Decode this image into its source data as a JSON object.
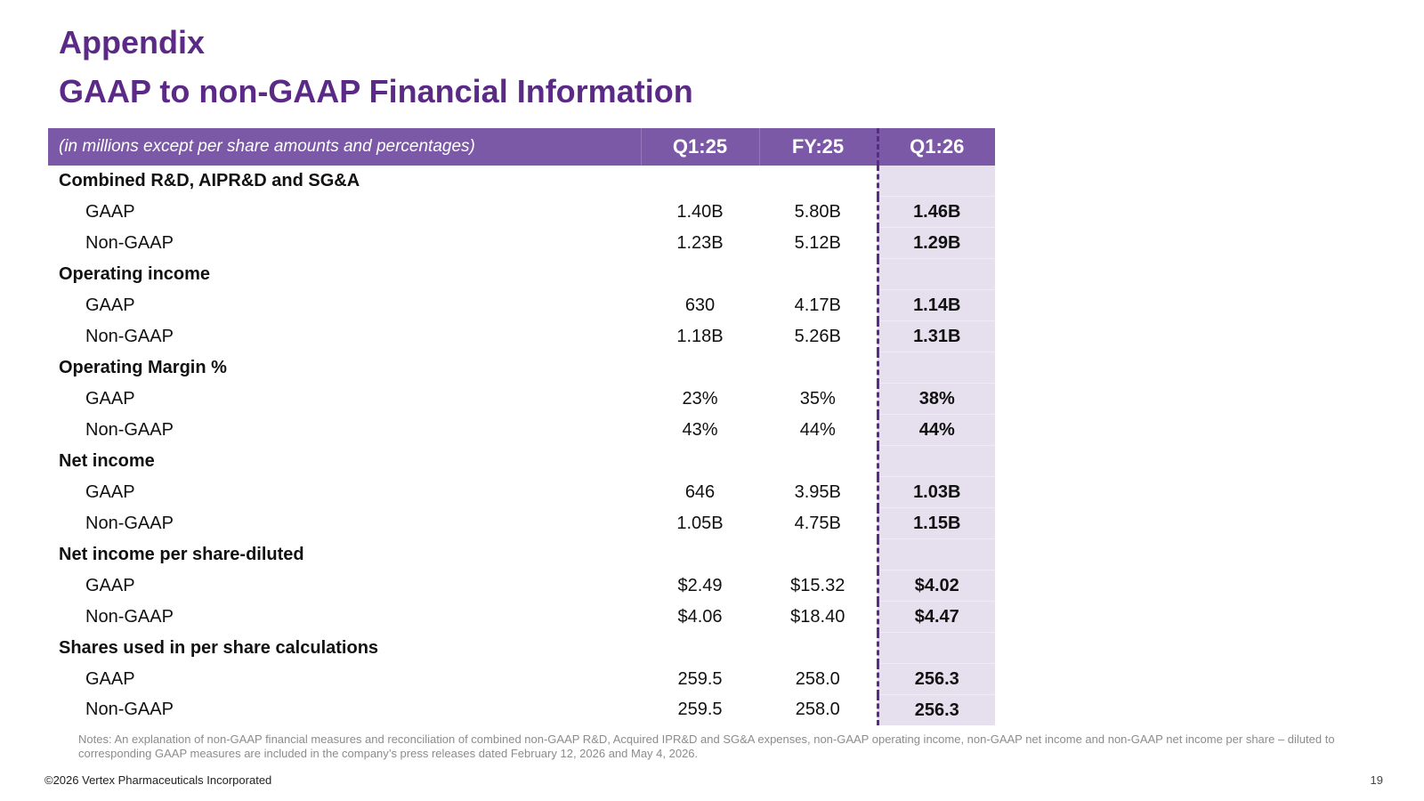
{
  "slide": {
    "title_line1": "Appendix",
    "title_line2": "GAAP to non-GAAP Financial Information"
  },
  "table": {
    "header": {
      "label": "(in millions except per share amounts and percentages)",
      "q1_25": "Q1:25",
      "fy_25": "FY:25",
      "q1_26": "Q1:26"
    },
    "rows": [
      {
        "label": "Combined R&D, AIPR&D and SG&A",
        "q1_25": "",
        "fy_25": "",
        "q1_26": ""
      },
      {
        "label": "GAAP",
        "q1_25": "1.40B",
        "fy_25": "5.80B",
        "q1_26": "1.46B"
      },
      {
        "label": "Non-GAAP",
        "q1_25": "1.23B",
        "fy_25": "5.12B",
        "q1_26": "1.29B"
      },
      {
        "label": "Operating income",
        "q1_25": "",
        "fy_25": "",
        "q1_26": ""
      },
      {
        "label": "GAAP",
        "q1_25": "630",
        "fy_25": "4.17B",
        "q1_26": "1.14B"
      },
      {
        "label": "Non-GAAP",
        "q1_25": "1.18B",
        "fy_25": "5.26B",
        "q1_26": "1.31B"
      },
      {
        "label": "Operating Margin %",
        "q1_25": "",
        "fy_25": "",
        "q1_26": ""
      },
      {
        "label": "GAAP",
        "q1_25": "23%",
        "fy_25": "35%",
        "q1_26": "38%"
      },
      {
        "label": "Non-GAAP",
        "q1_25": "43%",
        "fy_25": "44%",
        "q1_26": "44%"
      },
      {
        "label": "Net income",
        "q1_25": "",
        "fy_25": "",
        "q1_26": ""
      },
      {
        "label": "GAAP",
        "q1_25": "646",
        "fy_25": "3.95B",
        "q1_26": "1.03B"
      },
      {
        "label": "Non-GAAP",
        "q1_25": "1.05B",
        "fy_25": "4.75B",
        "q1_26": "1.15B"
      },
      {
        "label": "Net income per share-diluted",
        "q1_25": "",
        "fy_25": "",
        "q1_26": ""
      },
      {
        "label": "GAAP",
        "q1_25": "$2.49",
        "fy_25": "$15.32",
        "q1_26": "$4.02"
      },
      {
        "label": "Non-GAAP",
        "q1_25": "$4.06",
        "fy_25": "$18.40",
        "q1_26": "$4.47"
      },
      {
        "label": "Shares used in per share calculations",
        "q1_25": "",
        "fy_25": "",
        "q1_26": ""
      },
      {
        "label": "GAAP",
        "q1_25": "259.5",
        "fy_25": "258.0",
        "q1_26": "256.3"
      },
      {
        "label": "Non-GAAP",
        "q1_25": "259.5",
        "fy_25": "258.0",
        "q1_26": "256.3"
      }
    ]
  },
  "footer": {
    "notes": "Notes: An explanation of non-GAAP financial measures and reconciliation of combined non-GAAP R&D, Acquired IPR&D and SG&A expenses, non-GAAP operating income, non-GAAP net income and non-GAAP net income per share – diluted to corresponding GAAP measures are included in the company’s press releases dated February 12, 2026 and May 4, 2026.",
    "copyright": "©2026 Vertex Pharmaceuticals Incorporated",
    "page_number": "19"
  },
  "colors": {
    "title": "#5b2a86",
    "header_bg": "#7b59a6",
    "highlight_column_bg": "#e6dfee",
    "divider": "#5b2a86"
  }
}
